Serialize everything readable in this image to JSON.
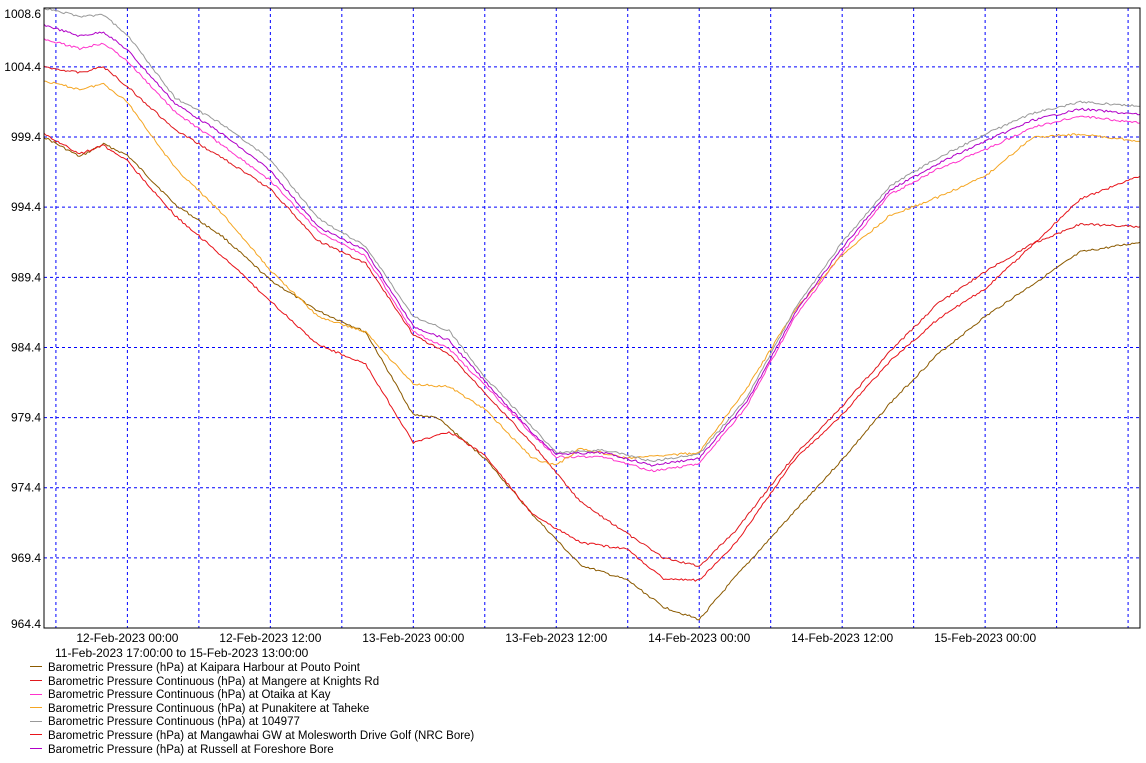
{
  "chart_data": {
    "type": "line",
    "title": "",
    "xlabel": "",
    "ylabel": "",
    "date_range_label": "11-Feb-2023 17:00:00 to 15-Feb-2023 13:00:00",
    "x_start": "2023-02-11T17:00:00",
    "x_end": "2023-02-15T13:00:00",
    "xlim": [
      "2023-02-11T17:00:00",
      "2023-02-15T13:00:00"
    ],
    "ylim": [
      964.4,
      1008.6
    ],
    "y_ticks": [
      "1008.6",
      "1004.4",
      "999.4",
      "994.4",
      "989.4",
      "984.4",
      "979.4",
      "974.4",
      "969.4",
      "964.4"
    ],
    "x_ticks": [
      {
        "label": "12-Feb-2023 00:00",
        "time": "2023-02-12T00:00:00"
      },
      {
        "label": "12-Feb-2023 12:00",
        "time": "2023-02-12T12:00:00"
      },
      {
        "label": "13-Feb-2023 00:00",
        "time": "2023-02-13T00:00:00"
      },
      {
        "label": "13-Feb-2023 12:00",
        "time": "2023-02-13T12:00:00"
      },
      {
        "label": "14-Feb-2023 00:00",
        "time": "2023-02-14T00:00:00"
      },
      {
        "label": "14-Feb-2023 12:00",
        "time": "2023-02-14T12:00:00"
      },
      {
        "label": "15-Feb-2023 00:00",
        "time": "2023-02-15T00:00:00"
      }
    ],
    "grid": true,
    "legend_position": "bottom-left",
    "series": [
      {
        "name": "Barometric Pressure (hPa) at Kaipara Harbour at Pouto Point",
        "color": "#8b5a00",
        "points": [
          [
            "2023-02-11T17:00",
            999.4
          ],
          [
            "2023-02-11T20:00",
            998.0
          ],
          [
            "2023-02-11T22:00",
            998.9
          ],
          [
            "2023-02-12T00:00",
            998.1
          ],
          [
            "2023-02-12T04:00",
            994.6
          ],
          [
            "2023-02-12T08:00",
            992.3
          ],
          [
            "2023-02-12T12:00",
            989.2
          ],
          [
            "2023-02-12T16:00",
            987.0
          ],
          [
            "2023-02-12T20:00",
            985.5
          ],
          [
            "2023-02-13T00:00",
            979.6
          ],
          [
            "2023-02-13T02:00",
            979.4
          ],
          [
            "2023-02-13T06:00",
            976.5
          ],
          [
            "2023-02-13T10:00",
            972.5
          ],
          [
            "2023-02-13T14:00",
            968.9
          ],
          [
            "2023-02-13T18:00",
            967.8
          ],
          [
            "2023-02-13T21:00",
            965.9
          ],
          [
            "2023-02-14T00:00",
            965.0
          ],
          [
            "2023-02-14T03:00",
            968.0
          ],
          [
            "2023-02-14T08:00",
            972.7
          ],
          [
            "2023-02-14T12:00",
            976.4
          ],
          [
            "2023-02-14T16:00",
            980.4
          ],
          [
            "2023-02-14T20:00",
            983.9
          ],
          [
            "2023-02-15T00:00",
            986.6
          ],
          [
            "2023-02-15T04:00",
            988.9
          ],
          [
            "2023-02-15T08:00",
            991.2
          ],
          [
            "2023-02-15T13:00",
            991.9
          ]
        ]
      },
      {
        "name": "Barometric Pressure Continuous (hPa) at Mangere at Knights Rd",
        "color": "#e0191e",
        "points": [
          [
            "2023-02-11T17:00",
            1004.4
          ],
          [
            "2023-02-11T20:00",
            1004.0
          ],
          [
            "2023-02-11T22:00",
            1004.4
          ],
          [
            "2023-02-12T00:00",
            1003.0
          ],
          [
            "2023-02-12T04:00",
            999.9
          ],
          [
            "2023-02-12T08:00",
            997.9
          ],
          [
            "2023-02-12T12:00",
            995.7
          ],
          [
            "2023-02-12T16:00",
            992.0
          ],
          [
            "2023-02-12T20:00",
            990.4
          ],
          [
            "2023-02-13T00:00",
            985.3
          ],
          [
            "2023-02-13T03:00",
            983.9
          ],
          [
            "2023-02-13T06:00",
            981.2
          ],
          [
            "2023-02-13T10:00",
            977.5
          ],
          [
            "2023-02-13T14:00",
            973.4
          ],
          [
            "2023-02-13T18:00",
            971.1
          ],
          [
            "2023-02-13T21:00",
            969.4
          ],
          [
            "2023-02-14T00:00",
            968.8
          ],
          [
            "2023-02-14T03:00",
            971.3
          ],
          [
            "2023-02-14T08:00",
            976.7
          ],
          [
            "2023-02-14T12:00",
            980.2
          ],
          [
            "2023-02-14T16:00",
            984.1
          ],
          [
            "2023-02-14T20:00",
            987.5
          ],
          [
            "2023-02-15T00:00",
            989.8
          ],
          [
            "2023-02-15T04:00",
            991.8
          ],
          [
            "2023-02-15T08:00",
            993.2
          ],
          [
            "2023-02-15T13:00",
            993.0
          ]
        ]
      },
      {
        "name": "Barometric Pressure Continuous (hPa) at Otaika at Kay",
        "color": "#ff33cc",
        "points": [
          [
            "2023-02-11T17:00",
            1006.4
          ],
          [
            "2023-02-11T20:00",
            1005.7
          ],
          [
            "2023-02-11T22:00",
            1006.1
          ],
          [
            "2023-02-12T00:00",
            1004.8
          ],
          [
            "2023-02-12T04:00",
            1001.2
          ],
          [
            "2023-02-12T08:00",
            998.8
          ],
          [
            "2023-02-12T12:00",
            996.3
          ],
          [
            "2023-02-12T16:00",
            992.7
          ],
          [
            "2023-02-12T20:00",
            990.9
          ],
          [
            "2023-02-13T00:00",
            985.5
          ],
          [
            "2023-02-13T03:00",
            984.3
          ],
          [
            "2023-02-13T06:00",
            981.7
          ],
          [
            "2023-02-13T10:00",
            978.2
          ],
          [
            "2023-02-13T12:00",
            976.6
          ],
          [
            "2023-02-13T16:00",
            976.6
          ],
          [
            "2023-02-13T20:00",
            975.6
          ],
          [
            "2023-02-14T00:00",
            976.1
          ],
          [
            "2023-02-14T04:00",
            980.2
          ],
          [
            "2023-02-14T08:00",
            986.5
          ],
          [
            "2023-02-14T12:00",
            991.1
          ],
          [
            "2023-02-14T16:00",
            995.3
          ],
          [
            "2023-02-14T20:00",
            997.1
          ],
          [
            "2023-02-15T00:00",
            998.5
          ],
          [
            "2023-02-15T04:00",
            1000.1
          ],
          [
            "2023-02-15T08:00",
            1000.9
          ],
          [
            "2023-02-15T13:00",
            1000.4
          ]
        ]
      },
      {
        "name": "Barometric Pressure Continuous (hPa) at Punakitere at Taheke",
        "color": "#f5a623",
        "points": [
          [
            "2023-02-11T17:00",
            1003.4
          ],
          [
            "2023-02-11T20:00",
            1002.8
          ],
          [
            "2023-02-11T22:00",
            1003.2
          ],
          [
            "2023-02-12T00:00",
            1001.9
          ],
          [
            "2023-02-12T04:00",
            997.2
          ],
          [
            "2023-02-12T08:00",
            993.9
          ],
          [
            "2023-02-12T12:00",
            989.9
          ],
          [
            "2023-02-12T16:00",
            986.6
          ],
          [
            "2023-02-12T20:00",
            985.5
          ],
          [
            "2023-02-13T00:00",
            981.8
          ],
          [
            "2023-02-13T03:00",
            981.6
          ],
          [
            "2023-02-13T06:00",
            980.0
          ],
          [
            "2023-02-13T10:00",
            976.5
          ],
          [
            "2023-02-13T12:00",
            976.0
          ],
          [
            "2023-02-13T14:00",
            977.2
          ],
          [
            "2023-02-13T18:00",
            976.5
          ],
          [
            "2023-02-14T00:00",
            976.9
          ],
          [
            "2023-02-14T04:00",
            981.5
          ],
          [
            "2023-02-14T08:00",
            987.0
          ],
          [
            "2023-02-14T12:00",
            991.0
          ],
          [
            "2023-02-14T16:00",
            993.8
          ],
          [
            "2023-02-14T20:00",
            995.1
          ],
          [
            "2023-02-15T00:00",
            996.6
          ],
          [
            "2023-02-15T04:00",
            999.4
          ],
          [
            "2023-02-15T08:00",
            999.6
          ],
          [
            "2023-02-15T13:00",
            999.1
          ]
        ]
      },
      {
        "name": "Barometric Pressure Continuous (hPa) at 104977",
        "color": "#999999",
        "points": [
          [
            "2023-02-11T17:00",
            1008.6
          ],
          [
            "2023-02-11T20:00",
            1008.0
          ],
          [
            "2023-02-11T22:00",
            1008.1
          ],
          [
            "2023-02-12T00:00",
            1006.7
          ],
          [
            "2023-02-12T04:00",
            1002.2
          ],
          [
            "2023-02-12T08:00",
            1000.3
          ],
          [
            "2023-02-12T12:00",
            997.8
          ],
          [
            "2023-02-12T16:00",
            993.6
          ],
          [
            "2023-02-12T20:00",
            991.6
          ],
          [
            "2023-02-13T00:00",
            986.6
          ],
          [
            "2023-02-13T03:00",
            985.6
          ],
          [
            "2023-02-13T06:00",
            982.3
          ],
          [
            "2023-02-13T10:00",
            978.7
          ],
          [
            "2023-02-13T12:00",
            976.9
          ],
          [
            "2023-02-13T16:00",
            977.1
          ],
          [
            "2023-02-13T20:00",
            976.3
          ],
          [
            "2023-02-14T00:00",
            976.8
          ],
          [
            "2023-02-14T04:00",
            980.8
          ],
          [
            "2023-02-14T08:00",
            987.1
          ],
          [
            "2023-02-14T12:00",
            991.9
          ],
          [
            "2023-02-14T16:00",
            995.9
          ],
          [
            "2023-02-14T20:00",
            997.9
          ],
          [
            "2023-02-15T00:00",
            999.6
          ],
          [
            "2023-02-15T04:00",
            1001.1
          ],
          [
            "2023-02-15T08:00",
            1001.9
          ],
          [
            "2023-02-15T13:00",
            1001.6
          ]
        ]
      },
      {
        "name": "Barometric Pressure (hPa) at Mangawhai GW at Molesworth Drive Golf (NRC Bore)",
        "color": "#e8141b",
        "points": [
          [
            "2023-02-11T17:00",
            999.6
          ],
          [
            "2023-02-11T20:00",
            998.2
          ],
          [
            "2023-02-11T22:00",
            998.8
          ],
          [
            "2023-02-12T00:00",
            997.7
          ],
          [
            "2023-02-12T04:00",
            993.8
          ],
          [
            "2023-02-12T08:00",
            990.9
          ],
          [
            "2023-02-12T12:00",
            987.7
          ],
          [
            "2023-02-12T16:00",
            984.6
          ],
          [
            "2023-02-12T20:00",
            983.2
          ],
          [
            "2023-02-13T00:00",
            977.6
          ],
          [
            "2023-02-13T03:00",
            978.4
          ],
          [
            "2023-02-13T06:00",
            976.7
          ],
          [
            "2023-02-13T10:00",
            972.5
          ],
          [
            "2023-02-13T14:00",
            970.5
          ],
          [
            "2023-02-13T18:00",
            970.0
          ],
          [
            "2023-02-13T21:00",
            967.9
          ],
          [
            "2023-02-14T00:00",
            967.8
          ],
          [
            "2023-02-14T03:00",
            970.4
          ],
          [
            "2023-02-14T08:00",
            976.4
          ],
          [
            "2023-02-14T12:00",
            979.6
          ],
          [
            "2023-02-14T16:00",
            983.4
          ],
          [
            "2023-02-14T20:00",
            986.4
          ],
          [
            "2023-02-15T00:00",
            988.6
          ],
          [
            "2023-02-15T04:00",
            991.7
          ],
          [
            "2023-02-15T08:00",
            995.0
          ],
          [
            "2023-02-15T13:00",
            996.6
          ]
        ]
      },
      {
        "name": "Barometric Pressure (hPa) at Russell at Foreshore Bore",
        "color": "#b000c8",
        "points": [
          [
            "2023-02-11T17:00",
            1007.4
          ],
          [
            "2023-02-11T20:00",
            1006.6
          ],
          [
            "2023-02-11T22:00",
            1006.9
          ],
          [
            "2023-02-12T00:00",
            1005.6
          ],
          [
            "2023-02-12T04:00",
            1001.8
          ],
          [
            "2023-02-12T08:00",
            999.6
          ],
          [
            "2023-02-12T12:00",
            997.0
          ],
          [
            "2023-02-12T16:00",
            993.0
          ],
          [
            "2023-02-12T20:00",
            991.3
          ],
          [
            "2023-02-13T00:00",
            985.9
          ],
          [
            "2023-02-13T03:00",
            984.9
          ],
          [
            "2023-02-13T06:00",
            982.0
          ],
          [
            "2023-02-13T10:00",
            978.3
          ],
          [
            "2023-02-13T12:00",
            976.8
          ],
          [
            "2023-02-13T16:00",
            976.9
          ],
          [
            "2023-02-13T20:00",
            976.0
          ],
          [
            "2023-02-14T00:00",
            976.5
          ],
          [
            "2023-02-14T04:00",
            980.5
          ],
          [
            "2023-02-14T08:00",
            986.8
          ],
          [
            "2023-02-14T12:00",
            991.5
          ],
          [
            "2023-02-14T16:00",
            995.6
          ],
          [
            "2023-02-14T20:00",
            997.5
          ],
          [
            "2023-02-15T00:00",
            999.1
          ],
          [
            "2023-02-15T04:00",
            1000.6
          ],
          [
            "2023-02-15T08:00",
            1001.4
          ],
          [
            "2023-02-15T13:00",
            1001.0
          ]
        ]
      }
    ]
  }
}
